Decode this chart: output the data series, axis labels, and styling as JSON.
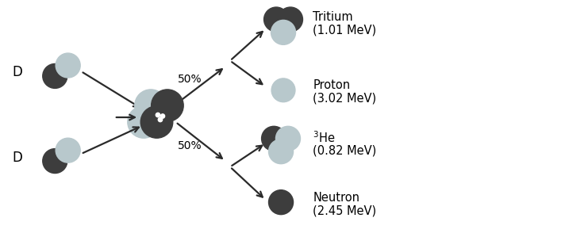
{
  "bg_color": "#ffffff",
  "dark_nucleus": "#3d3d3d",
  "light_nucleus": "#b8c8cc",
  "arrow_color": "#2a2a2a",
  "labels": {
    "D_top": "D",
    "D_bottom": "D",
    "pct_top": "50%",
    "pct_bottom": "50%",
    "tritium_name": "Tritium",
    "tritium_energy": "(1.01 MeV)",
    "proton_name": "Proton",
    "proton_energy": "(3.02 MeV)",
    "he3_energy": "(0.82 MeV)",
    "neutron_name": "Neutron",
    "neutron_energy": "(2.45 MeV)"
  },
  "font_size_label": 10.5,
  "font_size_D": 12,
  "font_size_pct": 10
}
